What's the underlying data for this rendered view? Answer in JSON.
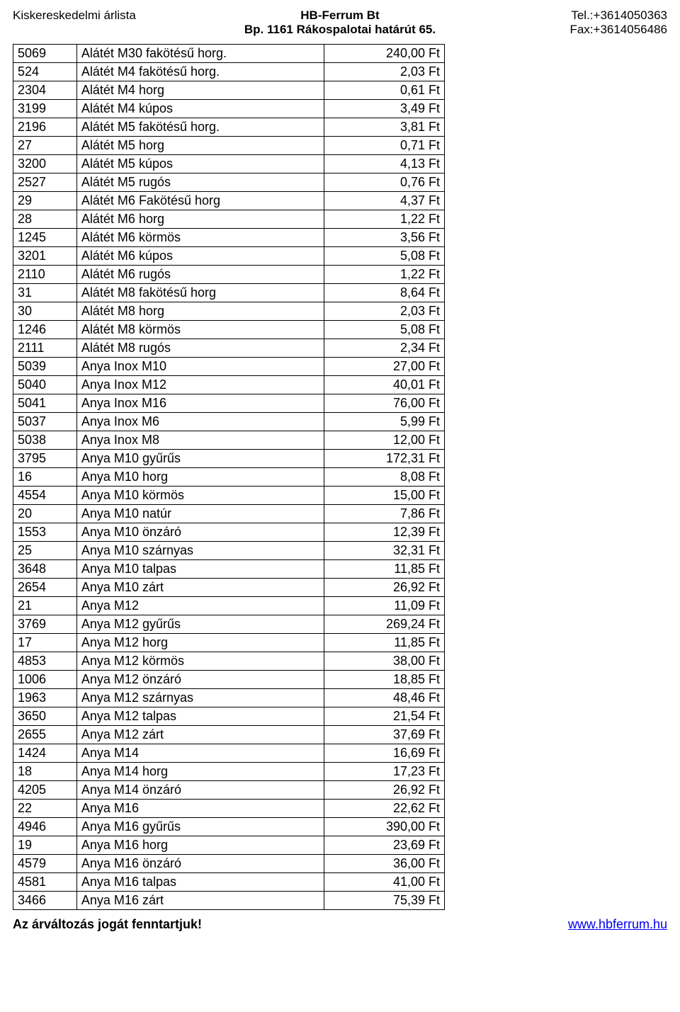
{
  "header": {
    "left": "Kiskereskedelmi árlista",
    "center_line1": "HB-Ferrum Bt",
    "center_line2": "Bp. 1161 Rákospalotai határút 65.",
    "right_line1": "Tel.:+3614050363",
    "right_line2": "Fax:+3614056486"
  },
  "rows": [
    {
      "code": "5069",
      "desc": "Alátét M30 fakötésű horg.",
      "price": "240,00 Ft"
    },
    {
      "code": "524",
      "desc": "Alátét M4 fakötésű horg.",
      "price": "2,03 Ft"
    },
    {
      "code": "2304",
      "desc": "Alátét M4 horg",
      "price": "0,61 Ft"
    },
    {
      "code": "3199",
      "desc": "Alátét M4 kúpos",
      "price": "3,49 Ft"
    },
    {
      "code": "2196",
      "desc": "Alátét M5 fakötésű horg.",
      "price": "3,81 Ft"
    },
    {
      "code": "27",
      "desc": "Alátét M5 horg",
      "price": "0,71 Ft"
    },
    {
      "code": "3200",
      "desc": "Alátét M5 kúpos",
      "price": "4,13 Ft"
    },
    {
      "code": "2527",
      "desc": "Alátét M5 rugós",
      "price": "0,76 Ft"
    },
    {
      "code": "29",
      "desc": "Alátét M6 Fakötésű horg",
      "price": "4,37 Ft"
    },
    {
      "code": "28",
      "desc": "Alátét M6 horg",
      "price": "1,22 Ft"
    },
    {
      "code": "1245",
      "desc": "Alátét M6 körmös",
      "price": "3,56 Ft"
    },
    {
      "code": "3201",
      "desc": "Alátét M6 kúpos",
      "price": "5,08 Ft"
    },
    {
      "code": "2110",
      "desc": "Alátét M6 rugós",
      "price": "1,22 Ft"
    },
    {
      "code": "31",
      "desc": "Alátét M8 fakötésű horg",
      "price": "8,64 Ft"
    },
    {
      "code": "30",
      "desc": "Alátét M8 horg",
      "price": "2,03 Ft"
    },
    {
      "code": "1246",
      "desc": "Alátét M8 körmös",
      "price": "5,08 Ft"
    },
    {
      "code": "2111",
      "desc": "Alátét M8 rugós",
      "price": "2,34 Ft"
    },
    {
      "code": "5039",
      "desc": "Anya Inox M10",
      "price": "27,00 Ft"
    },
    {
      "code": "5040",
      "desc": "Anya Inox M12",
      "price": "40,01 Ft"
    },
    {
      "code": "5041",
      "desc": "Anya Inox M16",
      "price": "76,00 Ft"
    },
    {
      "code": "5037",
      "desc": "Anya Inox M6",
      "price": "5,99 Ft"
    },
    {
      "code": "5038",
      "desc": "Anya Inox M8",
      "price": "12,00 Ft"
    },
    {
      "code": "3795",
      "desc": "Anya M10 gyűrűs",
      "price": "172,31 Ft"
    },
    {
      "code": "16",
      "desc": "Anya M10 horg",
      "price": "8,08 Ft"
    },
    {
      "code": "4554",
      "desc": "Anya M10 körmös",
      "price": "15,00 Ft"
    },
    {
      "code": "20",
      "desc": "Anya M10 natúr",
      "price": "7,86 Ft"
    },
    {
      "code": "1553",
      "desc": "Anya M10 önzáró",
      "price": "12,39 Ft"
    },
    {
      "code": "25",
      "desc": "Anya M10 szárnyas",
      "price": "32,31 Ft"
    },
    {
      "code": "3648",
      "desc": "Anya M10 talpas",
      "price": "11,85 Ft"
    },
    {
      "code": "2654",
      "desc": "Anya M10 zárt",
      "price": "26,92 Ft"
    },
    {
      "code": "21",
      "desc": "Anya M12",
      "price": "11,09 Ft"
    },
    {
      "code": "3769",
      "desc": "Anya M12 gyűrűs",
      "price": "269,24 Ft"
    },
    {
      "code": "17",
      "desc": "Anya M12 horg",
      "price": "11,85 Ft"
    },
    {
      "code": "4853",
      "desc": "Anya M12 körmös",
      "price": "38,00 Ft"
    },
    {
      "code": "1006",
      "desc": "Anya M12 önzáró",
      "price": "18,85 Ft"
    },
    {
      "code": "1963",
      "desc": "Anya M12 szárnyas",
      "price": "48,46 Ft"
    },
    {
      "code": "3650",
      "desc": "Anya M12 talpas",
      "price": "21,54 Ft"
    },
    {
      "code": "2655",
      "desc": "Anya M12 zárt",
      "price": "37,69 Ft"
    },
    {
      "code": "1424",
      "desc": "Anya M14",
      "price": "16,69 Ft"
    },
    {
      "code": "18",
      "desc": "Anya M14 horg",
      "price": "17,23 Ft"
    },
    {
      "code": "4205",
      "desc": "Anya M14 önzáró",
      "price": "26,92 Ft"
    },
    {
      "code": "22",
      "desc": "Anya M16",
      "price": "22,62 Ft"
    },
    {
      "code": "4946",
      "desc": "Anya M16 gyűrűs",
      "price": "390,00 Ft"
    },
    {
      "code": "19",
      "desc": "Anya M16 horg",
      "price": "23,69 Ft"
    },
    {
      "code": "4579",
      "desc": "Anya M16 önzáró",
      "price": "36,00 Ft"
    },
    {
      "code": "4581",
      "desc": "Anya M16 talpas",
      "price": "41,00 Ft"
    },
    {
      "code": "3466",
      "desc": "Anya M16 zárt",
      "price": "75,39 Ft"
    }
  ],
  "footer": {
    "left": "Az árváltozás jogát fenntartjuk!",
    "right": "www.hbferrum.hu"
  }
}
